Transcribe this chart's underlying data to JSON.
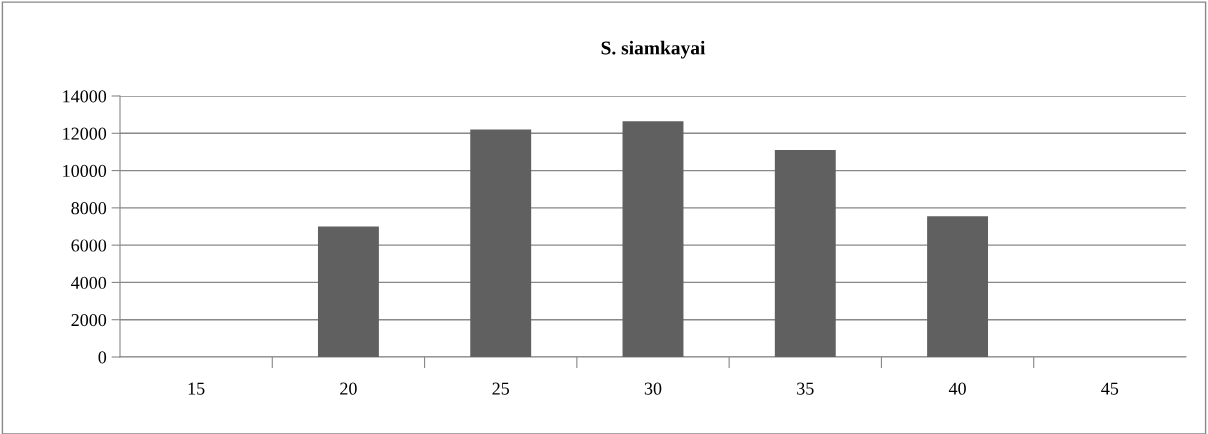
{
  "chart_data": {
    "type": "bar",
    "title": "S. siamkayai",
    "categories": [
      "15",
      "20",
      "25",
      "30",
      "35",
      "40",
      "45"
    ],
    "values": [
      0,
      7000,
      12200,
      12650,
      11100,
      7550,
      0
    ],
    "color": "#606060",
    "ylim": [
      0,
      14000
    ],
    "yticks": [
      0,
      2000,
      4000,
      6000,
      8000,
      10000,
      12000,
      14000
    ],
    "grid": "y",
    "legend": false
  }
}
